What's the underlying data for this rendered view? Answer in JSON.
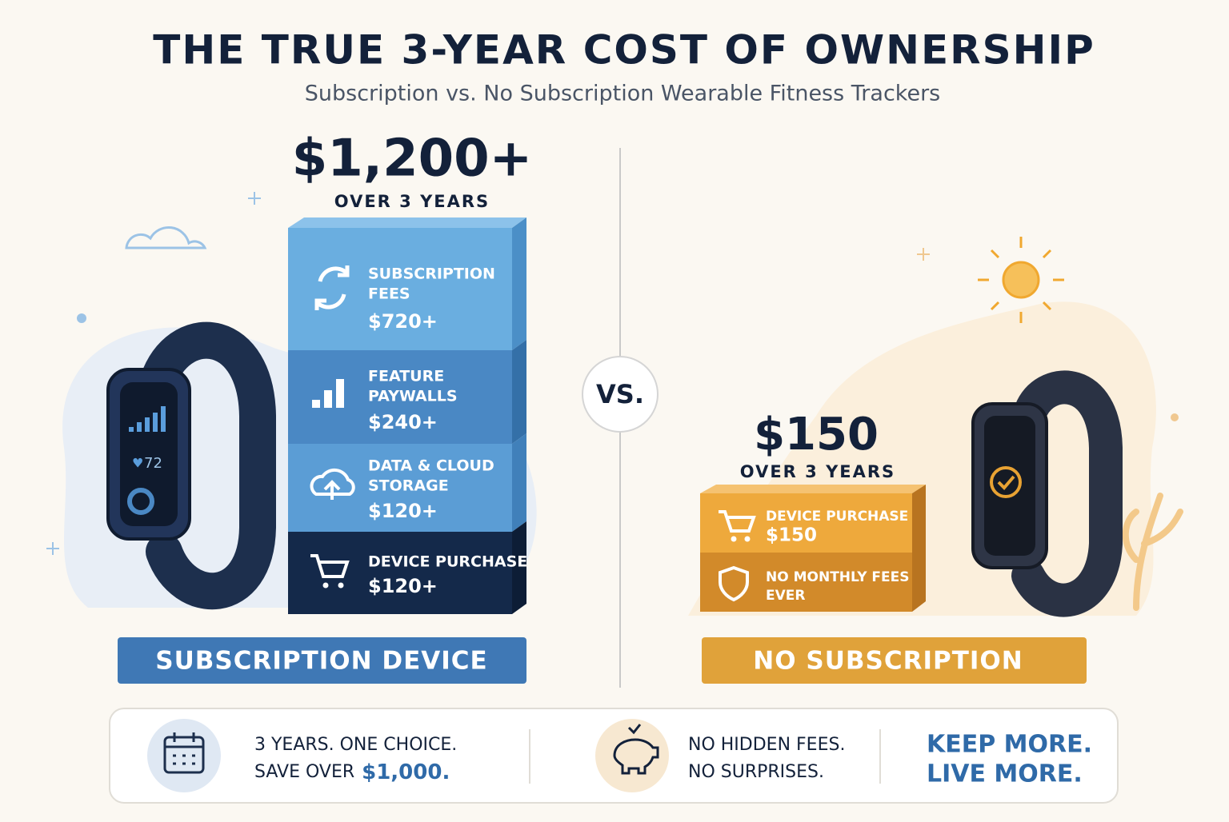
{
  "header": {
    "title": "THE TRUE 3-YEAR COST OF OWNERSHIP",
    "subtitle": "Subscription vs. No Subscription Wearable Fitness Trackers"
  },
  "left": {
    "total": "$1,200+",
    "total_caption": "OVER 3 YEARS",
    "device_screen": "72",
    "blocks": [
      {
        "label_lines": [
          "SUBSCRIPTION",
          "FEES"
        ],
        "amount": "$720+"
      },
      {
        "label_lines": [
          "FEATURE",
          "PAYWALLS"
        ],
        "amount": "$240+"
      },
      {
        "label_lines": [
          "DATA & CLOUD",
          "STORAGE"
        ],
        "amount": "$120+"
      },
      {
        "label_lines": [
          "DEVICE PURCHASE"
        ],
        "amount": "$120+"
      }
    ],
    "label": "SUBSCRIPTION DEVICE"
  },
  "vs": "VS.",
  "right": {
    "total": "$150",
    "total_caption": "OVER 3 YEARS",
    "blocks": [
      {
        "label_lines": [
          "DEVICE PURCHASE"
        ],
        "amount": "$150"
      },
      {
        "label_lines": [
          "NO MONTHLY FEES",
          "EVER"
        ]
      }
    ],
    "label": "NO SUBSCRIPTION"
  },
  "footer": {
    "items": [
      {
        "lines": [
          "3 YEARS. ONE CHOICE.",
          "SAVE OVER"
        ],
        "highlight": "$1,000."
      },
      {
        "lines": [
          "NO HIDDEN FEES.",
          "NO SURPRISES."
        ]
      },
      {
        "lines": [
          "KEEP MORE.",
          "LIVE MORE."
        ]
      }
    ]
  }
}
